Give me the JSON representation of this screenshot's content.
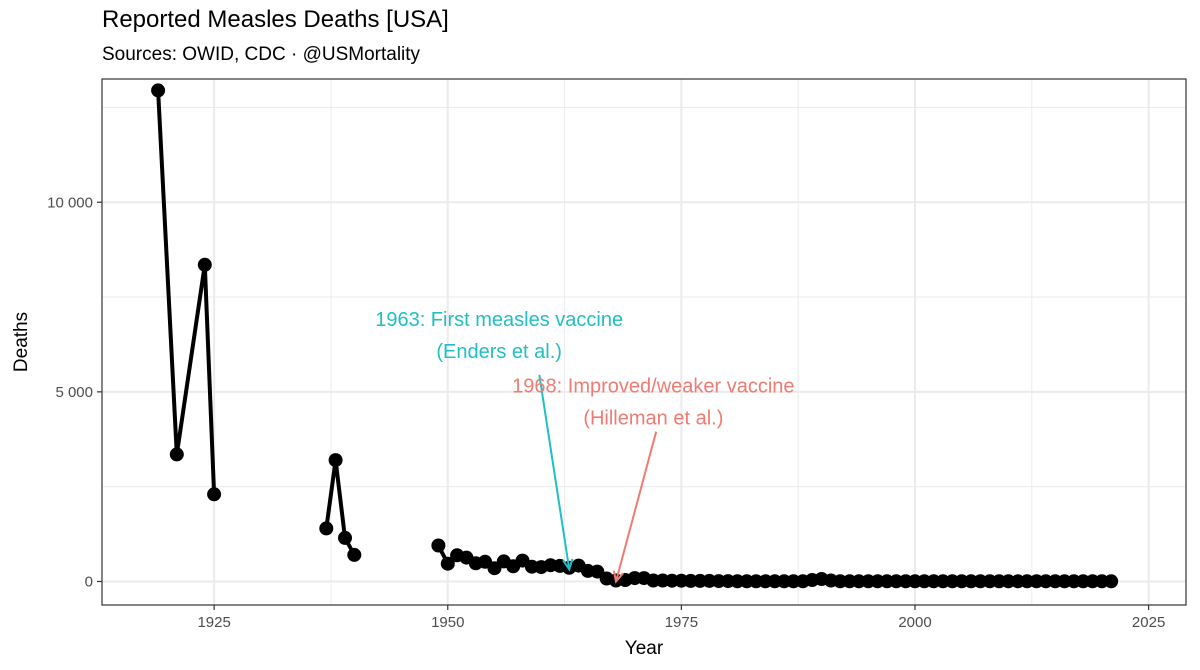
{
  "chart_data": {
    "type": "line",
    "title": "Reported Measles Deaths [USA]",
    "subtitle": "Sources: OWID, CDC · @USMortality",
    "xlabel": "Year",
    "ylabel": "Deaths",
    "xlim": [
      1913,
      2029
    ],
    "ylim": [
      -620,
      13250
    ],
    "x_ticks": [
      1925,
      1950,
      1975,
      2000,
      2025
    ],
    "x_tick_labels": [
      "1925",
      "1950",
      "1975",
      "2000",
      "2025"
    ],
    "y_ticks": [
      0,
      5000,
      10000
    ],
    "y_tick_labels": [
      "0",
      "5 000",
      "10 000"
    ],
    "series": [
      {
        "name": "Deaths",
        "color": "#000000",
        "segments": [
          [
            [
              1919,
              12950
            ],
            [
              1921,
              3350
            ],
            [
              1924,
              8350
            ],
            [
              1925,
              2300
            ]
          ],
          [
            [
              1937,
              1400
            ],
            [
              1938,
              3200
            ],
            [
              1939,
              1150
            ],
            [
              1940,
              700
            ]
          ],
          [
            [
              1949,
              950
            ],
            [
              1950,
              470
            ],
            [
              1951,
              690
            ],
            [
              1952,
              630
            ],
            [
              1953,
              480
            ],
            [
              1954,
              520
            ],
            [
              1955,
              350
            ],
            [
              1956,
              530
            ],
            [
              1957,
              400
            ],
            [
              1958,
              550
            ],
            [
              1959,
              390
            ],
            [
              1960,
              380
            ],
            [
              1961,
              430
            ],
            [
              1962,
              410
            ],
            [
              1963,
              360
            ],
            [
              1964,
              420
            ],
            [
              1965,
              280
            ],
            [
              1966,
              260
            ],
            [
              1967,
              80
            ],
            [
              1968,
              25
            ],
            [
              1969,
              40
            ],
            [
              1970,
              90
            ],
            [
              1971,
              90
            ],
            [
              1972,
              25
            ],
            [
              1973,
              25
            ],
            [
              1974,
              20
            ],
            [
              1975,
              20
            ],
            [
              1976,
              15
            ],
            [
              1977,
              15
            ],
            [
              1978,
              15
            ],
            [
              1979,
              10
            ],
            [
              1980,
              10
            ],
            [
              1981,
              5
            ],
            [
              1982,
              5
            ],
            [
              1983,
              5
            ],
            [
              1984,
              5
            ],
            [
              1985,
              5
            ],
            [
              1986,
              5
            ],
            [
              1987,
              5
            ],
            [
              1988,
              5
            ],
            [
              1989,
              40
            ],
            [
              1990,
              65
            ],
            [
              1991,
              25
            ],
            [
              1992,
              5
            ],
            [
              1993,
              5
            ],
            [
              1994,
              5
            ],
            [
              1995,
              5
            ],
            [
              1996,
              5
            ],
            [
              1997,
              5
            ],
            [
              1998,
              5
            ],
            [
              1999,
              5
            ],
            [
              2000,
              5
            ],
            [
              2001,
              5
            ],
            [
              2002,
              5
            ],
            [
              2003,
              5
            ],
            [
              2004,
              5
            ],
            [
              2005,
              5
            ],
            [
              2006,
              5
            ],
            [
              2007,
              5
            ],
            [
              2008,
              5
            ],
            [
              2009,
              5
            ],
            [
              2010,
              5
            ],
            [
              2011,
              5
            ],
            [
              2012,
              5
            ],
            [
              2013,
              5
            ],
            [
              2014,
              5
            ],
            [
              2015,
              5
            ],
            [
              2016,
              5
            ],
            [
              2017,
              5
            ],
            [
              2018,
              5
            ],
            [
              2019,
              5
            ],
            [
              2020,
              5
            ],
            [
              2021,
              5
            ]
          ]
        ]
      }
    ],
    "annotations": [
      {
        "lines": [
          "1963: First measles vaccine",
          "(Enders et al.)"
        ],
        "color": "#1fbfc4",
        "text_center": [
          1955.5,
          6500
        ],
        "arrow_from": [
          1959.8,
          5450
        ],
        "arrow_to": [
          1963,
          320
        ]
      },
      {
        "lines": [
          "1968: Improved/weaker vaccine",
          "(Hilleman et al.)"
        ],
        "color": "#f07b72",
        "text_center": [
          1972,
          4750
        ],
        "arrow_from": [
          1972.3,
          3950
        ],
        "arrow_to": [
          1968,
          0
        ]
      }
    ]
  }
}
